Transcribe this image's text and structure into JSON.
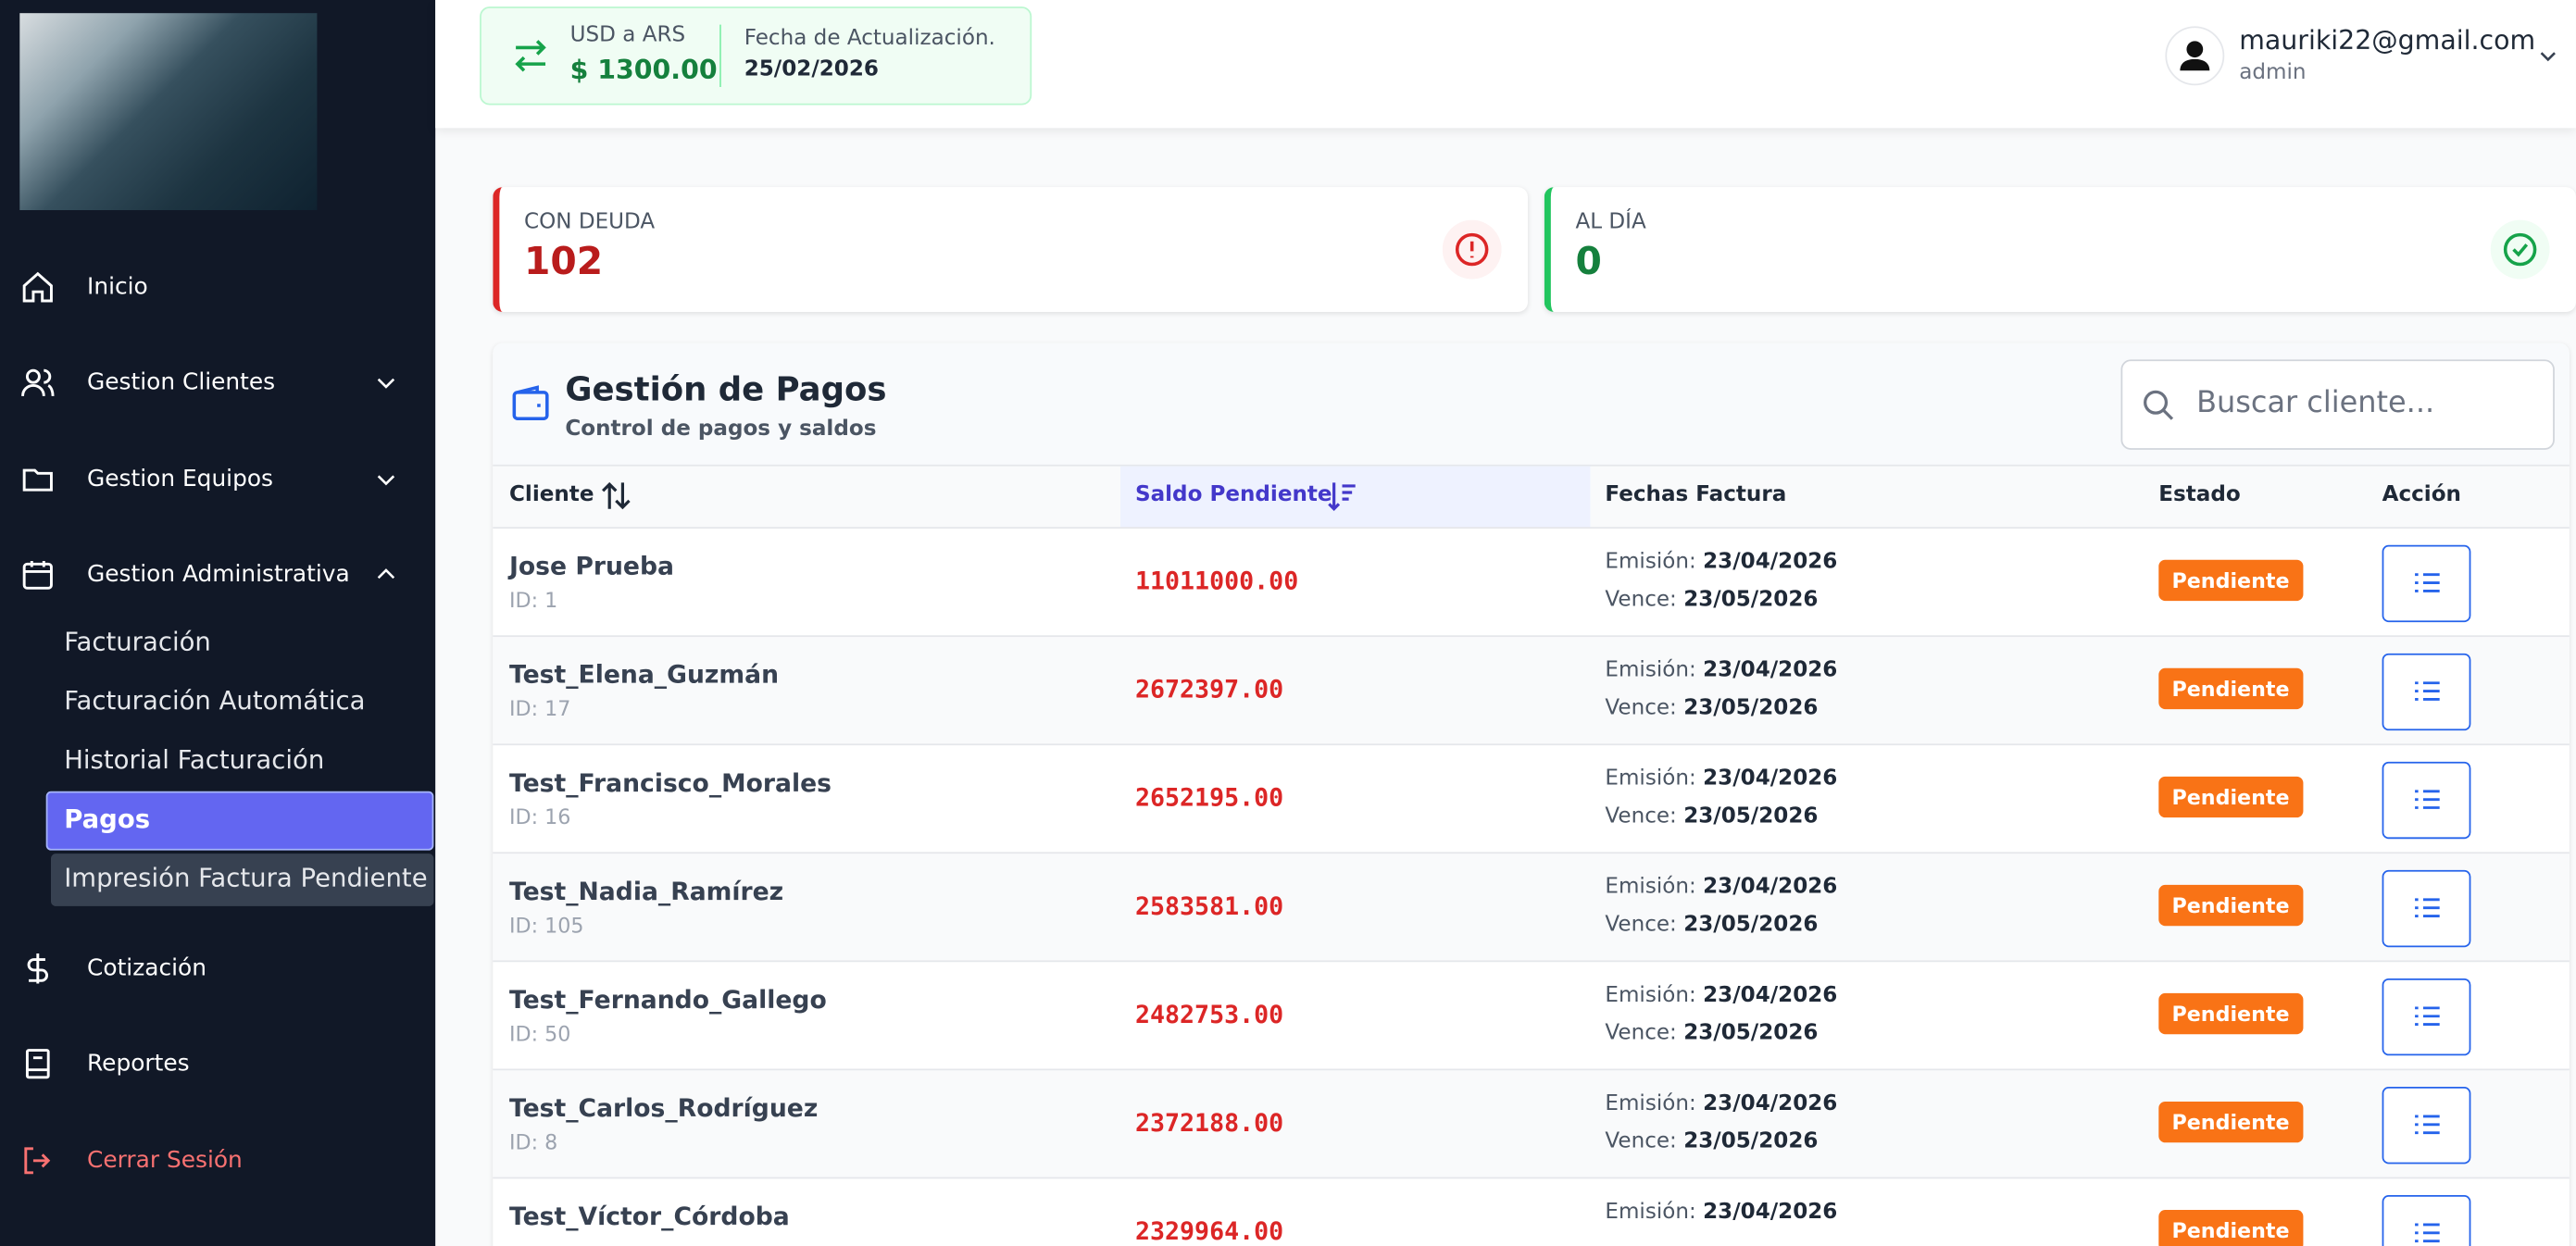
{
  "header": {
    "rate_label": "USD a ARS",
    "rate_value": "$ 1300.00",
    "update_label": "Fecha de Actualización.",
    "update_date": "25/02/2026",
    "user_email": "mauriki22@gmail.com",
    "user_role": "admin"
  },
  "sidebar": {
    "inicio": "Inicio",
    "clientes": "Gestion Clientes",
    "equipos": "Gestion Equipos",
    "administrativa": "Gestion Administrativa",
    "submenu": [
      "Facturación",
      "Facturación Automática",
      "Historial Facturación",
      "Pagos",
      "Impresión Factura Pendiente"
    ],
    "cotizacion": "Cotización",
    "reportes": "Reportes",
    "logout": "Cerrar Sesión"
  },
  "stats": [
    {
      "label": "CON DEUDA",
      "value": 102
    },
    {
      "label": "AL DÍA",
      "value": 0
    }
  ],
  "panel": {
    "title": "Gestión de Pagos",
    "subtitle": "Control de pagos y saldos",
    "search_placeholder": "Buscar cliente..."
  },
  "table": {
    "columns": [
      "Cliente",
      "Saldo Pendiente",
      "Fechas Factura",
      "Estado",
      "Acción"
    ],
    "rows": [
      {
        "name": "Jose Prueba",
        "id": "ID: 1",
        "balance": "11011000.00",
        "issue_label": "Emisión:",
        "issue": "23/04/2026",
        "due_label": "Vence:",
        "due": "23/05/2026",
        "status": "Pendiente"
      },
      {
        "name": "Test_Elena_Guzmán",
        "id": "ID: 17",
        "balance": "2672397.00",
        "issue_label": "Emisión:",
        "issue": "23/04/2026",
        "due_label": "Vence:",
        "due": "23/05/2026",
        "status": "Pendiente"
      },
      {
        "name": "Test_Francisco_Morales",
        "id": "ID: 16",
        "balance": "2652195.00",
        "issue_label": "Emisión:",
        "issue": "23/04/2026",
        "due_label": "Vence:",
        "due": "23/05/2026",
        "status": "Pendiente"
      },
      {
        "name": "Test_Nadia_Ramírez",
        "id": "ID: 105",
        "balance": "2583581.00",
        "issue_label": "Emisión:",
        "issue": "23/04/2026",
        "due_label": "Vence:",
        "due": "23/05/2026",
        "status": "Pendiente"
      },
      {
        "name": "Test_Fernando_Gallego",
        "id": "ID: 50",
        "balance": "2482753.00",
        "issue_label": "Emisión:",
        "issue": "23/04/2026",
        "due_label": "Vence:",
        "due": "23/05/2026",
        "status": "Pendiente"
      },
      {
        "name": "Test_Carlos_Rodríguez",
        "id": "ID: 8",
        "balance": "2372188.00",
        "issue_label": "Emisión:",
        "issue": "23/04/2026",
        "due_label": "Vence:",
        "due": "23/05/2026",
        "status": "Pendiente"
      },
      {
        "name": "Test_Víctor_Córdoba",
        "balance": "2329964.00",
        "issue_label": "Emisión:",
        "issue": "23/04/2026",
        "status": "Pendiente"
      }
    ]
  }
}
